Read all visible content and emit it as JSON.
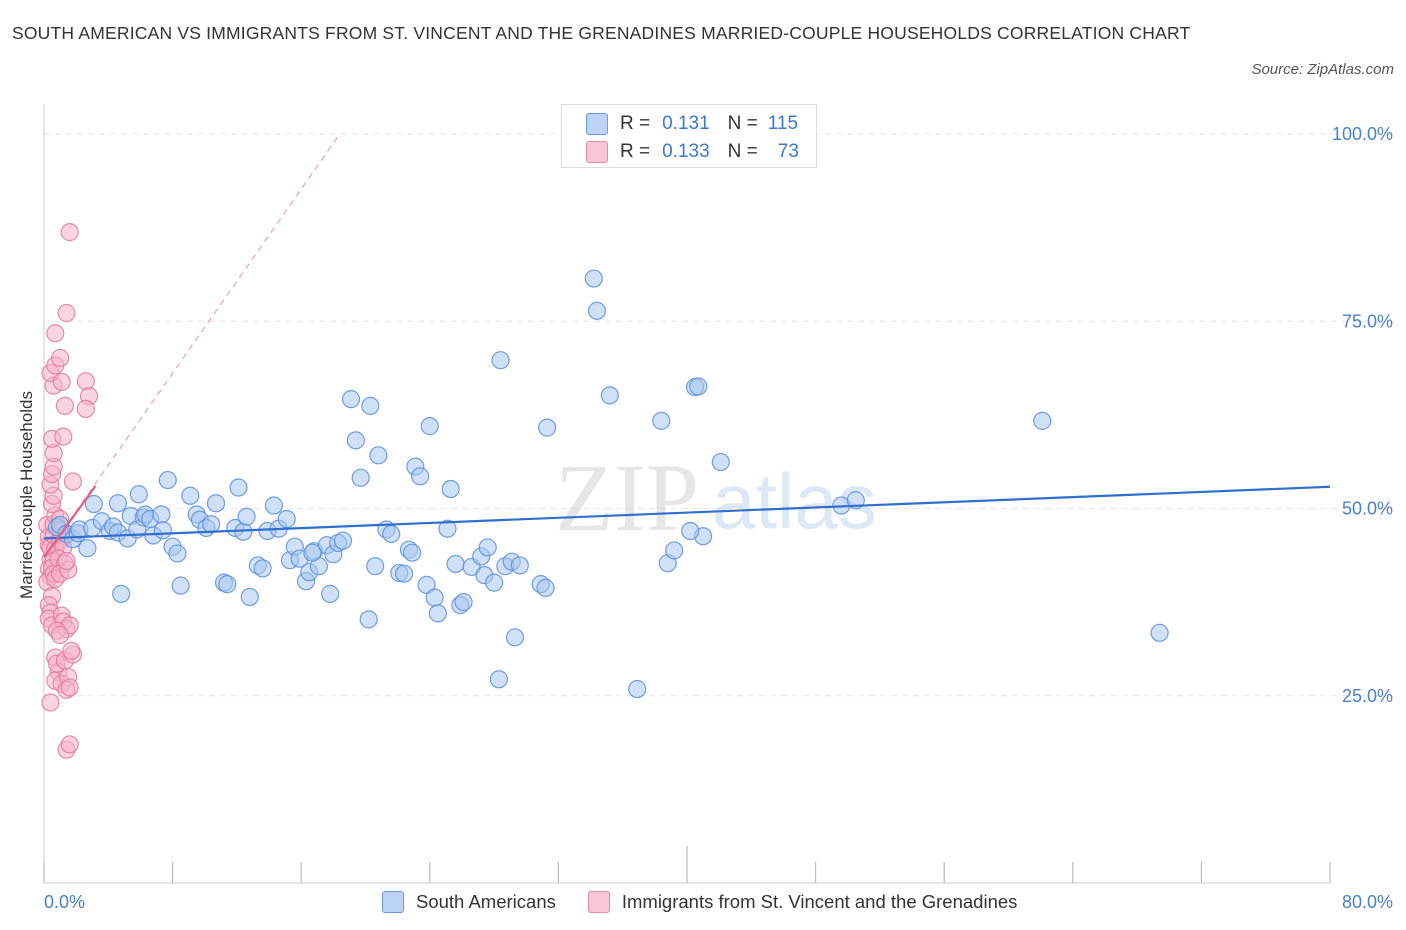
{
  "title": "SOUTH AMERICAN VS IMMIGRANTS FROM ST. VINCENT AND THE GRENADINES MARRIED-COUPLE HOUSEHOLDS CORRELATION CHART",
  "source": "Source: ZipAtlas.com",
  "watermark": {
    "zip": "ZIP",
    "atlas": "atlas"
  },
  "legend_top": {
    "rows": [
      {
        "r_label": "R =",
        "r_value": "0.131",
        "n_label": "N =",
        "n_value": "115"
      },
      {
        "r_label": "R =",
        "r_value": "0.133",
        "n_label": "N =",
        "n_value": "73"
      }
    ]
  },
  "legend_bottom": {
    "items": [
      {
        "label": "South Americans"
      },
      {
        "label": "Immigrants from St. Vincent and the Grenadines"
      }
    ]
  },
  "colors": {
    "blue_fill": "#a9c7f0",
    "blue_stroke": "#5b8fd8",
    "blue_line": "#2f6fcf",
    "pink_fill": "#f5b3c8",
    "pink_stroke": "#e07a9c",
    "pink_line": "#e0608a",
    "axis_text": "#4a7fd0",
    "grid": "#e6e6e6"
  },
  "chart_data": {
    "type": "scatter",
    "title": "SOUTH AMERICAN VS IMMIGRANTS FROM ST. VINCENT AND THE GRENADINES MARRIED-COUPLE HOUSEHOLDS CORRELATION CHART",
    "xlabel": "",
    "ylabel": "Married-couple Households",
    "xlim": [
      0,
      80
    ],
    "ylim": [
      0,
      100
    ],
    "x_tick_labels": [
      "0.0%",
      "80.0%"
    ],
    "y_tick_labels": [
      "100.0%",
      "75.0%",
      "50.0%",
      "25.0%"
    ],
    "y_ticks": [
      100,
      75,
      50,
      25
    ],
    "grid": "horizontal dashed",
    "legend": "top-center and bottom-center",
    "series": [
      {
        "name": "South Americans",
        "R": 0.131,
        "N": 115,
        "trend": {
          "x": [
            0,
            80
          ],
          "y": [
            46,
            52.9
          ]
        },
        "points": [
          [
            0.8,
            47.5
          ],
          [
            1.0,
            47.8
          ],
          [
            1.4,
            46.6
          ],
          [
            1.8,
            45.9
          ],
          [
            2.1,
            46.7
          ],
          [
            2.2,
            47.2
          ],
          [
            2.7,
            44.7
          ],
          [
            3.0,
            47.4
          ],
          [
            3.1,
            50.6
          ],
          [
            3.6,
            48.3
          ],
          [
            4.1,
            47.0
          ],
          [
            4.3,
            47.6
          ],
          [
            4.6,
            46.8
          ],
          [
            4.6,
            50.7
          ],
          [
            4.8,
            38.6
          ],
          [
            5.2,
            46.0
          ],
          [
            5.4,
            49.0
          ],
          [
            5.8,
            47.2
          ],
          [
            5.9,
            51.9
          ],
          [
            6.2,
            48.8
          ],
          [
            6.3,
            49.2
          ],
          [
            6.6,
            48.6
          ],
          [
            6.8,
            46.4
          ],
          [
            7.3,
            49.2
          ],
          [
            7.4,
            47.1
          ],
          [
            7.7,
            53.8
          ],
          [
            8.0,
            44.9
          ],
          [
            8.3,
            44.0
          ],
          [
            8.5,
            39.7
          ],
          [
            9.1,
            51.7
          ],
          [
            9.5,
            49.2
          ],
          [
            9.7,
            48.5
          ],
          [
            10.1,
            47.4
          ],
          [
            10.4,
            47.9
          ],
          [
            10.7,
            50.7
          ],
          [
            11.2,
            40.1
          ],
          [
            11.4,
            39.9
          ],
          [
            11.9,
            47.4
          ],
          [
            12.1,
            52.8
          ],
          [
            12.4,
            46.9
          ],
          [
            12.6,
            48.9
          ],
          [
            12.8,
            38.2
          ],
          [
            13.3,
            42.4
          ],
          [
            13.6,
            42.0
          ],
          [
            13.9,
            47.0
          ],
          [
            14.3,
            50.4
          ],
          [
            14.6,
            47.3
          ],
          [
            15.1,
            48.6
          ],
          [
            15.3,
            43.1
          ],
          [
            15.6,
            44.9
          ],
          [
            15.9,
            43.3
          ],
          [
            16.3,
            40.3
          ],
          [
            16.5,
            41.5
          ],
          [
            16.8,
            44.3
          ],
          [
            17.1,
            42.3
          ],
          [
            17.6,
            45.1
          ],
          [
            17.8,
            38.6
          ],
          [
            18.0,
            43.9
          ],
          [
            18.3,
            45.4
          ],
          [
            18.6,
            45.7
          ],
          [
            19.1,
            64.6
          ],
          [
            19.4,
            59.1
          ],
          [
            19.7,
            54.1
          ],
          [
            20.3,
            63.7
          ],
          [
            20.6,
            42.3
          ],
          [
            20.8,
            57.1
          ],
          [
            20.2,
            35.2
          ],
          [
            21.3,
            47.2
          ],
          [
            21.6,
            46.6
          ],
          [
            22.1,
            41.4
          ],
          [
            22.4,
            41.3
          ],
          [
            22.7,
            44.5
          ],
          [
            22.9,
            44.1
          ],
          [
            23.1,
            55.6
          ],
          [
            23.4,
            54.3
          ],
          [
            24.0,
            61.0
          ],
          [
            23.8,
            39.8
          ],
          [
            24.3,
            38.1
          ],
          [
            24.5,
            36.0
          ],
          [
            25.1,
            47.3
          ],
          [
            25.3,
            52.6
          ],
          [
            25.6,
            42.6
          ],
          [
            25.9,
            37.1
          ],
          [
            26.1,
            37.5
          ],
          [
            26.6,
            42.2
          ],
          [
            27.2,
            43.6
          ],
          [
            27.4,
            41.1
          ],
          [
            27.6,
            44.8
          ],
          [
            28.0,
            40.1
          ],
          [
            28.3,
            27.2
          ],
          [
            28.4,
            69.8
          ],
          [
            28.7,
            42.3
          ],
          [
            29.1,
            42.9
          ],
          [
            29.3,
            32.8
          ],
          [
            29.6,
            42.4
          ],
          [
            30.9,
            39.9
          ],
          [
            31.2,
            39.4
          ],
          [
            31.3,
            60.8
          ],
          [
            34.2,
            80.7
          ],
          [
            34.4,
            76.4
          ],
          [
            35.2,
            65.1
          ],
          [
            36.9,
            25.9
          ],
          [
            38.4,
            61.7
          ],
          [
            38.8,
            42.7
          ],
          [
            39.2,
            44.4
          ],
          [
            40.5,
            66.2
          ],
          [
            40.7,
            66.3
          ],
          [
            41.0,
            46.3
          ],
          [
            42.1,
            56.2
          ],
          [
            49.6,
            50.4
          ],
          [
            50.5,
            51.1
          ],
          [
            62.1,
            61.7
          ],
          [
            69.4,
            33.4
          ],
          [
            40.2,
            47.0
          ],
          [
            16.7,
            44.1
          ]
        ]
      },
      {
        "name": "Immigrants from St. Vincent and the Grenadines",
        "R": 0.133,
        "N": 73,
        "trend": {
          "x": [
            0,
            3.2
          ],
          "y": [
            43.5,
            53.0
          ]
        },
        "trend_dashed": {
          "x": [
            0,
            18.4
          ],
          "y": [
            43.5,
            100
          ]
        },
        "points": [
          [
            0.2,
            47.8
          ],
          [
            0.3,
            46.2
          ],
          [
            0.3,
            45.1
          ],
          [
            0.4,
            44.8
          ],
          [
            0.4,
            43.2
          ],
          [
            0.3,
            41.9
          ],
          [
            0.4,
            40.9
          ],
          [
            0.2,
            40.2
          ],
          [
            0.5,
            38.3
          ],
          [
            0.3,
            37.1
          ],
          [
            0.4,
            36.1
          ],
          [
            0.3,
            35.3
          ],
          [
            0.5,
            34.4
          ],
          [
            0.6,
            47.9
          ],
          [
            0.6,
            46.4
          ],
          [
            0.7,
            44.6
          ],
          [
            0.6,
            43.0
          ],
          [
            0.5,
            42.1
          ],
          [
            0.6,
            41.3
          ],
          [
            0.7,
            40.6
          ],
          [
            0.7,
            49.1
          ],
          [
            0.5,
            50.6
          ],
          [
            0.6,
            51.7
          ],
          [
            0.4,
            53.2
          ],
          [
            0.5,
            54.6
          ],
          [
            0.6,
            55.6
          ],
          [
            0.6,
            57.4
          ],
          [
            0.5,
            59.3
          ],
          [
            0.6,
            66.4
          ],
          [
            0.4,
            68.1
          ],
          [
            0.7,
            69.1
          ],
          [
            0.7,
            73.4
          ],
          [
            1.0,
            70.1
          ],
          [
            1.1,
            66.9
          ],
          [
            1.3,
            63.7
          ],
          [
            1.2,
            59.6
          ],
          [
            1.0,
            48.6
          ],
          [
            1.1,
            47.2
          ],
          [
            1.3,
            46.3
          ],
          [
            1.0,
            45.7
          ],
          [
            1.2,
            44.8
          ],
          [
            0.9,
            43.3
          ],
          [
            1.3,
            42.6
          ],
          [
            1.0,
            41.3
          ],
          [
            1.5,
            41.8
          ],
          [
            1.4,
            43.0
          ],
          [
            1.1,
            35.7
          ],
          [
            1.2,
            34.9
          ],
          [
            1.4,
            33.9
          ],
          [
            1.6,
            34.4
          ],
          [
            0.8,
            33.7
          ],
          [
            1.0,
            33.1
          ],
          [
            0.7,
            30.1
          ],
          [
            0.9,
            28.2
          ],
          [
            0.7,
            27.0
          ],
          [
            1.1,
            26.6
          ],
          [
            1.5,
            27.5
          ],
          [
            1.4,
            25.8
          ],
          [
            1.6,
            26.1
          ],
          [
            0.4,
            24.1
          ],
          [
            0.8,
            29.3
          ],
          [
            1.3,
            29.7
          ],
          [
            1.8,
            30.5
          ],
          [
            1.7,
            31.0
          ],
          [
            1.4,
            17.8
          ],
          [
            1.6,
            18.5
          ],
          [
            1.6,
            86.9
          ],
          [
            1.4,
            76.1
          ],
          [
            2.6,
            67.0
          ],
          [
            2.8,
            65.0
          ],
          [
            2.6,
            63.3
          ],
          [
            1.8,
            53.6
          ],
          [
            1.0,
            47.0
          ]
        ]
      }
    ]
  }
}
